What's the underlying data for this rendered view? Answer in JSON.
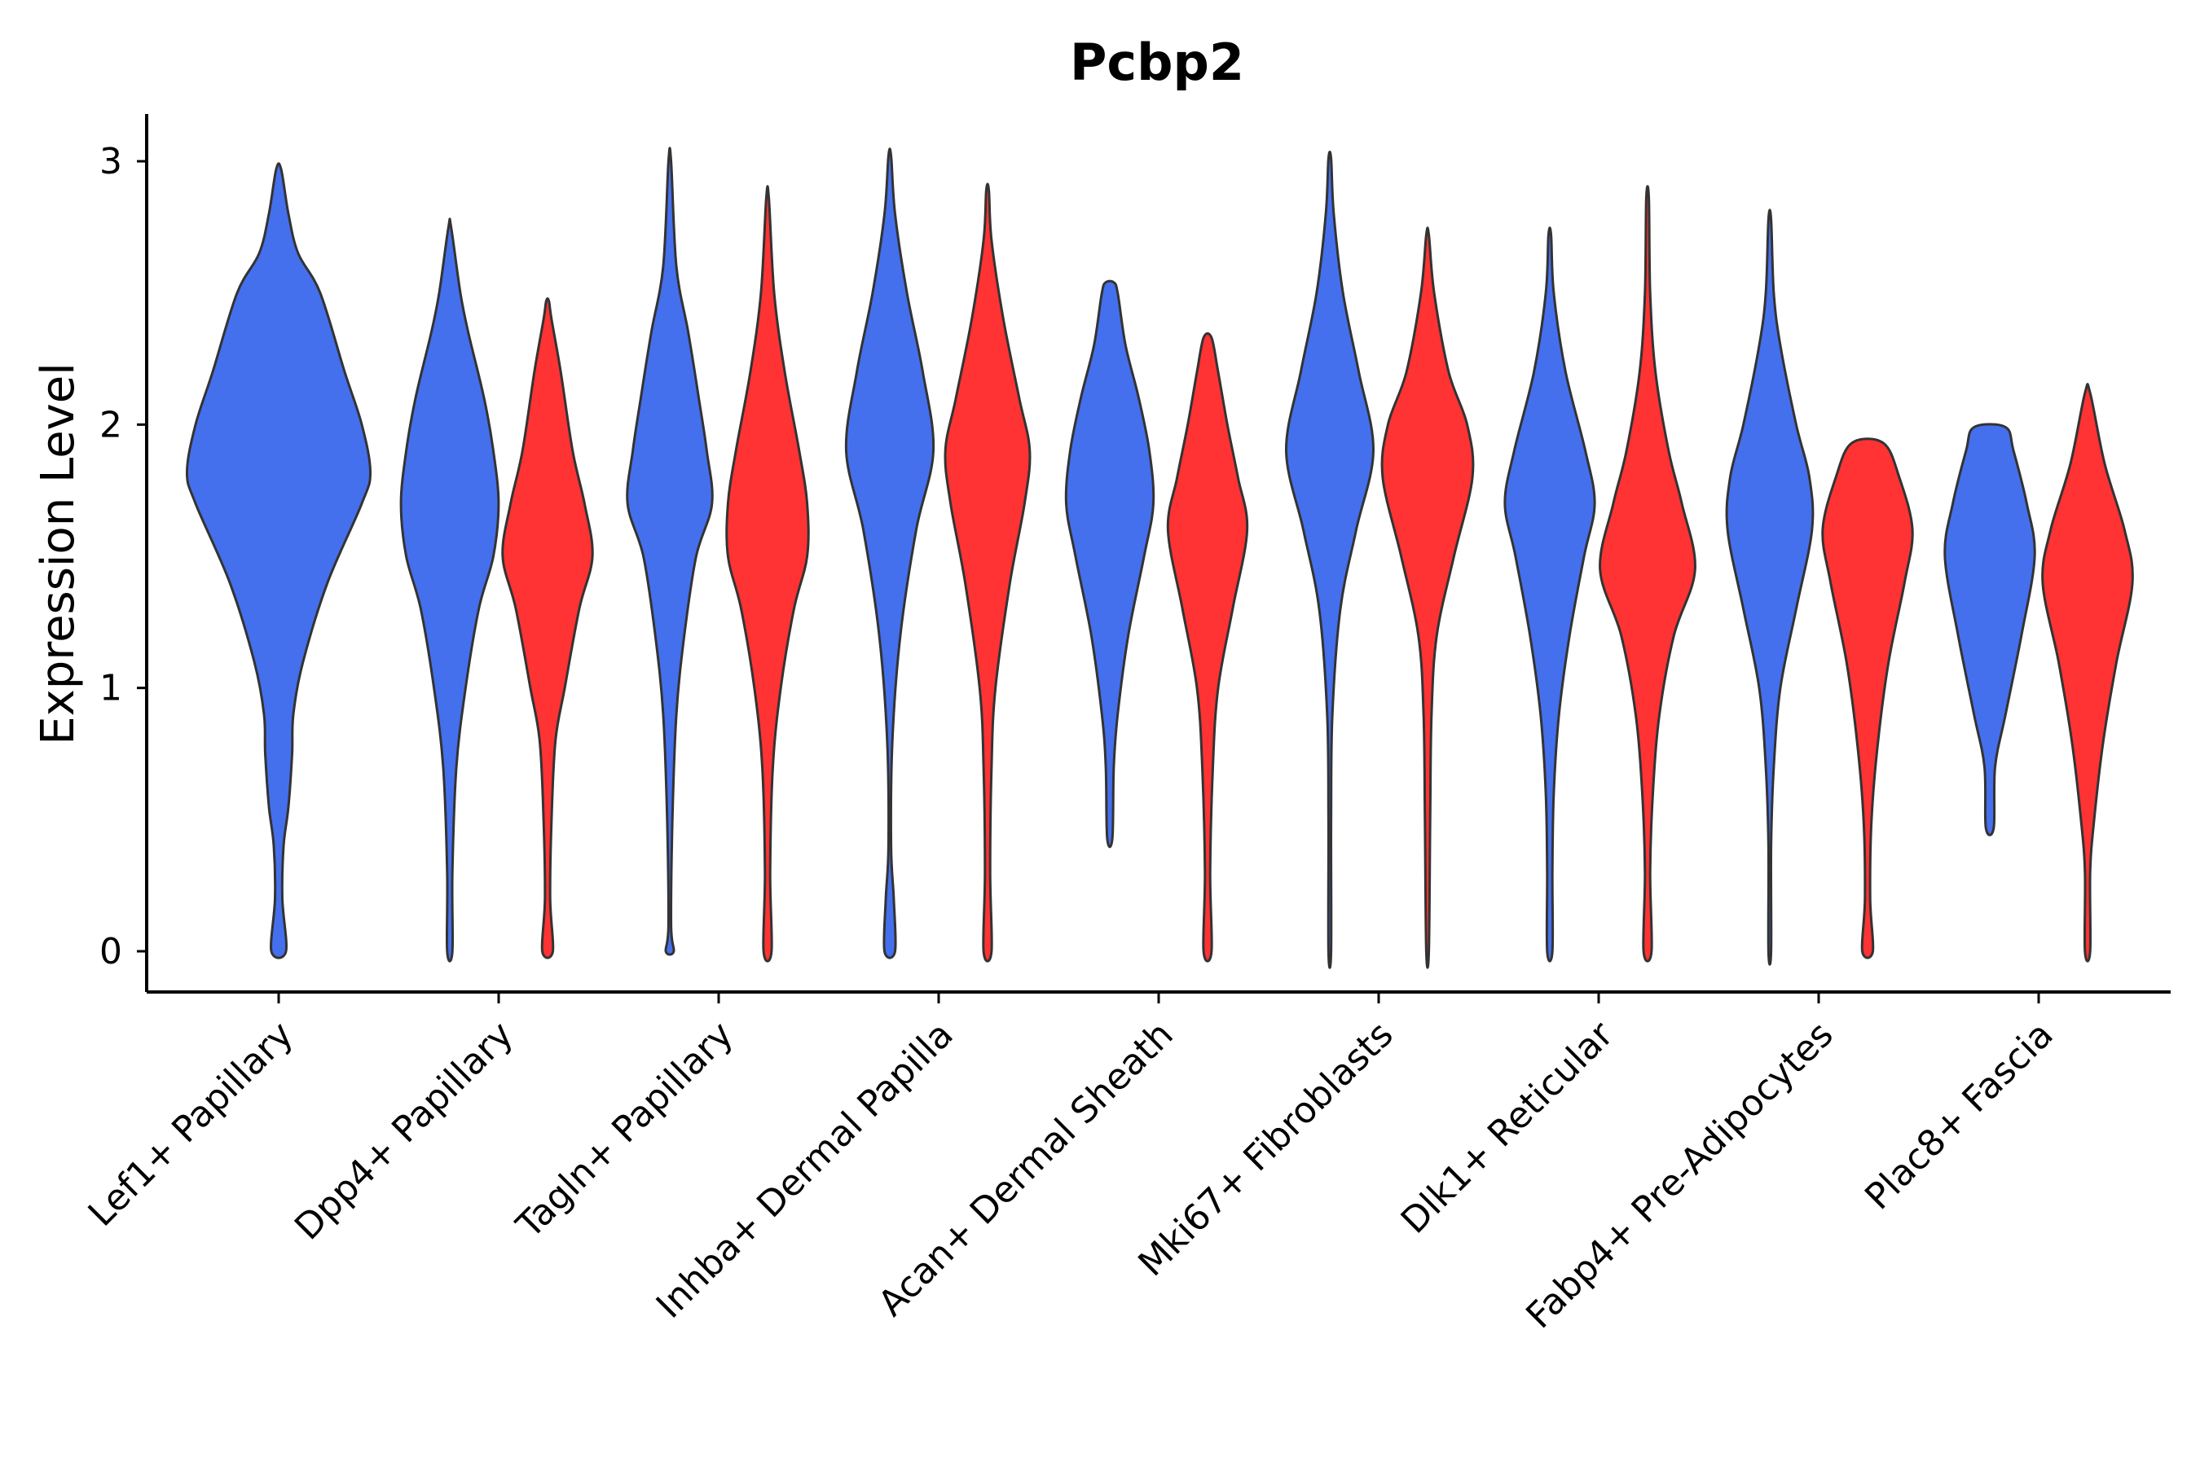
{
  "chart_data": {
    "type": "violin",
    "title": "Pcbp2",
    "ylabel": "Expression Level",
    "xlabel": "",
    "ylim": [
      -0.15,
      3.15
    ],
    "yticks": [
      0,
      1,
      2,
      3
    ],
    "ytick_labels": [
      "0",
      "1",
      "2",
      "3"
    ],
    "grid": false,
    "colors": {
      "group1": "#4470EE",
      "group2": "#FF3333"
    },
    "categories": [
      "Lef1+ Papillary",
      "Dpp4+ Papillary",
      "Tagln+ Papillary",
      "Inhba+ Dermal Papilla",
      "Acan+ Dermal Sheath",
      "Mki67+ Fibroblasts",
      "Dlk1+ Reticular",
      "Fabp4+ Pre-Adipocytes",
      "Plac8+ Fascia"
    ],
    "violins": [
      {
        "category": "Lef1+ Papillary",
        "group": "group1",
        "color": "#4470EE",
        "profile": [
          [
            0.0,
            0.06
          ],
          [
            0.2,
            0.03
          ],
          [
            0.4,
            0.04
          ],
          [
            0.55,
            0.08
          ],
          [
            0.75,
            0.11
          ],
          [
            0.9,
            0.12
          ],
          [
            1.1,
            0.2
          ],
          [
            1.4,
            0.4
          ],
          [
            1.7,
            0.68
          ],
          [
            1.82,
            0.75
          ],
          [
            2.0,
            0.68
          ],
          [
            2.2,
            0.54
          ],
          [
            2.5,
            0.34
          ],
          [
            2.65,
            0.16
          ],
          [
            2.8,
            0.08
          ],
          [
            2.97,
            0.02
          ]
        ]
      },
      {
        "category": "Dpp4+ Papillary",
        "group": "group1",
        "color": "#4470EE",
        "profile": [
          [
            0.0,
            0.02
          ],
          [
            0.3,
            0.02
          ],
          [
            0.7,
            0.05
          ],
          [
            1.0,
            0.12
          ],
          [
            1.3,
            0.22
          ],
          [
            1.5,
            0.33
          ],
          [
            1.7,
            0.37
          ],
          [
            1.9,
            0.33
          ],
          [
            2.1,
            0.26
          ],
          [
            2.35,
            0.14
          ],
          [
            2.5,
            0.08
          ],
          [
            2.75,
            0.01
          ]
        ]
      },
      {
        "category": "Dpp4+ Papillary",
        "group": "group2",
        "color": "#FF3333",
        "profile": [
          [
            0.0,
            0.04
          ],
          [
            0.2,
            0.02
          ],
          [
            0.5,
            0.03
          ],
          [
            0.8,
            0.06
          ],
          [
            1.0,
            0.13
          ],
          [
            1.3,
            0.24
          ],
          [
            1.5,
            0.34
          ],
          [
            1.7,
            0.28
          ],
          [
            1.9,
            0.19
          ],
          [
            2.2,
            0.1
          ],
          [
            2.4,
            0.03
          ],
          [
            2.47,
            0.01
          ]
        ]
      },
      {
        "category": "Tagln+ Papillary",
        "group": "group1",
        "color": "#4470EE",
        "profile": [
          [
            0.0,
            0.03
          ],
          [
            0.1,
            0.01
          ],
          [
            0.5,
            0.02
          ],
          [
            0.9,
            0.05
          ],
          [
            1.2,
            0.11
          ],
          [
            1.5,
            0.2
          ],
          [
            1.7,
            0.32
          ],
          [
            1.9,
            0.28
          ],
          [
            2.1,
            0.22
          ],
          [
            2.35,
            0.14
          ],
          [
            2.6,
            0.05
          ],
          [
            3.0,
            0.01
          ]
        ]
      },
      {
        "category": "Tagln+ Papillary",
        "group": "group2",
        "color": "#FF3333",
        "profile": [
          [
            0.0,
            0.03
          ],
          [
            0.3,
            0.02
          ],
          [
            0.7,
            0.04
          ],
          [
            1.0,
            0.1
          ],
          [
            1.3,
            0.2
          ],
          [
            1.5,
            0.3
          ],
          [
            1.7,
            0.3
          ],
          [
            1.9,
            0.24
          ],
          [
            2.2,
            0.13
          ],
          [
            2.5,
            0.05
          ],
          [
            2.86,
            0.01
          ]
        ]
      },
      {
        "category": "Inhba+ Dermal Papilla",
        "group": "group1",
        "color": "#4470EE",
        "profile": [
          [
            0.0,
            0.04
          ],
          [
            0.2,
            0.03
          ],
          [
            0.4,
            0.01
          ],
          [
            0.8,
            0.02
          ],
          [
            1.2,
            0.08
          ],
          [
            1.6,
            0.2
          ],
          [
            1.9,
            0.33
          ],
          [
            2.2,
            0.25
          ],
          [
            2.5,
            0.13
          ],
          [
            2.8,
            0.04
          ],
          [
            3.02,
            0.01
          ]
        ]
      },
      {
        "category": "Inhba+ Dermal Papilla",
        "group": "group2",
        "color": "#FF3333",
        "profile": [
          [
            0.0,
            0.03
          ],
          [
            0.3,
            0.02
          ],
          [
            0.7,
            0.03
          ],
          [
            1.0,
            0.06
          ],
          [
            1.4,
            0.17
          ],
          [
            1.7,
            0.28
          ],
          [
            1.9,
            0.32
          ],
          [
            2.1,
            0.24
          ],
          [
            2.4,
            0.12
          ],
          [
            2.7,
            0.03
          ],
          [
            2.89,
            0.01
          ]
        ]
      },
      {
        "category": "Acan+ Dermal Sheath",
        "group": "group1",
        "color": "#4470EE",
        "profile": [
          [
            0.43,
            0.02
          ],
          [
            0.7,
            0.03
          ],
          [
            0.9,
            0.06
          ],
          [
            1.2,
            0.14
          ],
          [
            1.5,
            0.26
          ],
          [
            1.7,
            0.33
          ],
          [
            1.9,
            0.3
          ],
          [
            2.1,
            0.22
          ],
          [
            2.3,
            0.12
          ],
          [
            2.5,
            0.06
          ],
          [
            2.54,
            0.03
          ]
        ]
      },
      {
        "category": "Acan+ Dermal Sheath",
        "group": "group2",
        "color": "#FF3333",
        "profile": [
          [
            0.0,
            0.03
          ],
          [
            0.3,
            0.02
          ],
          [
            0.7,
            0.04
          ],
          [
            1.0,
            0.08
          ],
          [
            1.3,
            0.19
          ],
          [
            1.6,
            0.3
          ],
          [
            1.8,
            0.23
          ],
          [
            2.0,
            0.15
          ],
          [
            2.2,
            0.08
          ],
          [
            2.33,
            0.03
          ]
        ]
      },
      {
        "category": "Mki67+ Fibroblasts",
        "group": "group1",
        "color": "#4470EE",
        "profile": [
          [
            0.0,
            0.01
          ],
          [
            0.5,
            0.01
          ],
          [
            0.9,
            0.02
          ],
          [
            1.3,
            0.08
          ],
          [
            1.6,
            0.2
          ],
          [
            1.9,
            0.33
          ],
          [
            2.2,
            0.22
          ],
          [
            2.5,
            0.1
          ],
          [
            2.8,
            0.03
          ],
          [
            3.01,
            0.01
          ]
        ]
      },
      {
        "category": "Mki67+ Fibroblasts",
        "group": "group2",
        "color": "#FF3333",
        "profile": [
          [
            0.0,
            0.01
          ],
          [
            0.5,
            0.02
          ],
          [
            0.9,
            0.03
          ],
          [
            1.2,
            0.07
          ],
          [
            1.5,
            0.2
          ],
          [
            1.8,
            0.34
          ],
          [
            2.0,
            0.3
          ],
          [
            2.2,
            0.16
          ],
          [
            2.5,
            0.05
          ],
          [
            2.72,
            0.01
          ]
        ]
      },
      {
        "category": "Dlk1+ Reticular",
        "group": "group1",
        "color": "#4470EE",
        "profile": [
          [
            0.0,
            0.02
          ],
          [
            0.3,
            0.02
          ],
          [
            0.6,
            0.03
          ],
          [
            0.9,
            0.07
          ],
          [
            1.2,
            0.15
          ],
          [
            1.5,
            0.26
          ],
          [
            1.7,
            0.34
          ],
          [
            1.9,
            0.27
          ],
          [
            2.2,
            0.12
          ],
          [
            2.5,
            0.03
          ],
          [
            2.72,
            0.01
          ]
        ]
      },
      {
        "category": "Dlk1+ Reticular",
        "group": "group2",
        "color": "#FF3333",
        "profile": [
          [
            0.0,
            0.03
          ],
          [
            0.3,
            0.02
          ],
          [
            0.6,
            0.04
          ],
          [
            0.9,
            0.09
          ],
          [
            1.2,
            0.2
          ],
          [
            1.45,
            0.36
          ],
          [
            1.7,
            0.26
          ],
          [
            1.9,
            0.16
          ],
          [
            2.2,
            0.06
          ],
          [
            2.5,
            0.02
          ],
          [
            2.86,
            0.01
          ]
        ]
      },
      {
        "category": "Fabp4+ Pre-Adipocytes",
        "group": "group1",
        "color": "#4470EE",
        "profile": [
          [
            0.0,
            0.01
          ],
          [
            0.4,
            0.01
          ],
          [
            0.7,
            0.03
          ],
          [
            1.0,
            0.08
          ],
          [
            1.3,
            0.2
          ],
          [
            1.6,
            0.32
          ],
          [
            1.8,
            0.3
          ],
          [
            2.0,
            0.2
          ],
          [
            2.3,
            0.08
          ],
          [
            2.5,
            0.03
          ],
          [
            2.78,
            0.01
          ]
        ]
      },
      {
        "category": "Fabp4+ Pre-Adipocytes",
        "group": "group2",
        "color": "#FF3333",
        "profile": [
          [
            0.0,
            0.04
          ],
          [
            0.2,
            0.02
          ],
          [
            0.5,
            0.03
          ],
          [
            0.8,
            0.08
          ],
          [
            1.1,
            0.16
          ],
          [
            1.4,
            0.28
          ],
          [
            1.6,
            0.34
          ],
          [
            1.8,
            0.24
          ],
          [
            1.93,
            0.12
          ]
        ]
      },
      {
        "category": "Plac8+ Fascia",
        "group": "group1",
        "color": "#4470EE",
        "profile": [
          [
            0.47,
            0.03
          ],
          [
            0.7,
            0.04
          ],
          [
            0.9,
            0.12
          ],
          [
            1.2,
            0.24
          ],
          [
            1.5,
            0.34
          ],
          [
            1.7,
            0.28
          ],
          [
            1.9,
            0.18
          ],
          [
            1.99,
            0.12
          ]
        ]
      },
      {
        "category": "Plac8+ Fascia",
        "group": "group2",
        "color": "#FF3333",
        "profile": [
          [
            0.0,
            0.02
          ],
          [
            0.3,
            0.02
          ],
          [
            0.5,
            0.05
          ],
          [
            0.8,
            0.12
          ],
          [
            1.1,
            0.22
          ],
          [
            1.4,
            0.34
          ],
          [
            1.6,
            0.28
          ],
          [
            1.85,
            0.13
          ],
          [
            2.12,
            0.02
          ]
        ]
      }
    ]
  }
}
